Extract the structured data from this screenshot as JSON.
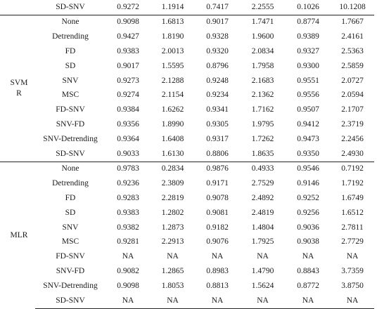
{
  "blocks": [
    {
      "model": [],
      "rows": [
        [
          "SD-SNV",
          "0.9272",
          "1.1914",
          "0.7417",
          "2.2555",
          "0.1026",
          "10.1208"
        ]
      ]
    },
    {
      "model": [
        "SVM",
        "R"
      ],
      "rows": [
        [
          "None",
          "0.9098",
          "1.6813",
          "0.9017",
          "1.7471",
          "0.8774",
          "1.7667"
        ],
        [
          "Detrending",
          "0.9427",
          "1.8190",
          "0.9328",
          "1.9600",
          "0.9389",
          "2.4161"
        ],
        [
          "FD",
          "0.9383",
          "2.0013",
          "0.9320",
          "2.0834",
          "0.9327",
          "2.5363"
        ],
        [
          "SD",
          "0.9017",
          "1.5595",
          "0.8796",
          "1.7958",
          "0.9300",
          "2.5859"
        ],
        [
          "SNV",
          "0.9273",
          "2.1288",
          "0.9248",
          "2.1683",
          "0.9551",
          "2.0727"
        ],
        [
          "MSC",
          "0.9274",
          "2.1154",
          "0.9234",
          "2.1362",
          "0.9556",
          "2.0594"
        ],
        [
          "FD-SNV",
          "0.9384",
          "1.6262",
          "0.9341",
          "1.7162",
          "0.9507",
          "2.1707"
        ],
        [
          "SNV-FD",
          "0.9356",
          "1.8990",
          "0.9305",
          "1.9795",
          "0.9412",
          "2.3719"
        ],
        [
          "SNV-Detrending",
          "0.9364",
          "1.6408",
          "0.9317",
          "1.7262",
          "0.9473",
          "2.2456"
        ],
        [
          "SD-SNV",
          "0.9033",
          "1.6130",
          "0.8806",
          "1.8635",
          "0.9350",
          "2.4930"
        ]
      ]
    },
    {
      "model": [
        "MLR"
      ],
      "rows": [
        [
          "None",
          "0.9783",
          "0.2834",
          "0.9876",
          "0.4933",
          "0.9546",
          "0.7192"
        ],
        [
          "Detrending",
          "0.9236",
          "2.3809",
          "0.9171",
          "2.7529",
          "0.9146",
          "1.7192"
        ],
        [
          "FD",
          "0.9283",
          "2.2819",
          "0.9078",
          "2.4892",
          "0.9252",
          "1.6749"
        ],
        [
          "SD",
          "0.9383",
          "1.2802",
          "0.9081",
          "2.4819",
          "0.9256",
          "1.6512"
        ],
        [
          "SNV",
          "0.9382",
          "1.2873",
          "0.9182",
          "1.4804",
          "0.9036",
          "2.7811"
        ],
        [
          "MSC",
          "0.9281",
          "2.2913",
          "0.9076",
          "1.7925",
          "0.9038",
          "2.7729"
        ],
        [
          "FD-SNV",
          "NA",
          "NA",
          "NA",
          "NA",
          "NA",
          "NA"
        ],
        [
          "SNV-FD",
          "0.9082",
          "1.2865",
          "0.8983",
          "1.4790",
          "0.8843",
          "3.7359"
        ],
        [
          "SNV-Detrending",
          "0.9098",
          "1.8053",
          "0.8813",
          "1.5624",
          "0.8772",
          "3.8750"
        ],
        [
          "SD-SNV",
          "NA",
          "NA",
          "NA",
          "NA",
          "NA",
          "NA"
        ]
      ]
    }
  ]
}
